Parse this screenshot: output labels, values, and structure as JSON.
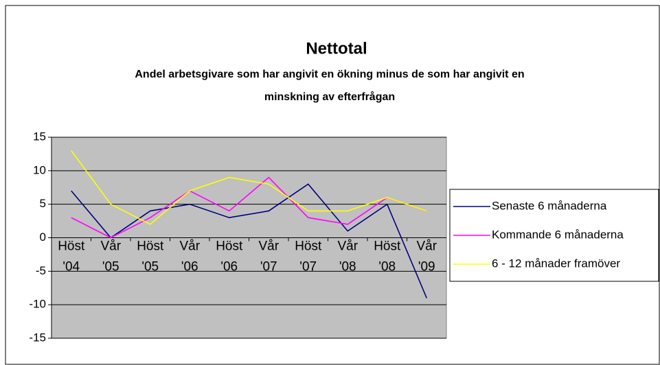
{
  "chart_data": {
    "type": "line",
    "title": "Nettotal",
    "subtitle": [
      "Andel arbetsgivare som har angivit en ökning minus de som har angivit en",
      "minskning av efterfrågan"
    ],
    "categories": [
      [
        "Höst",
        "'04"
      ],
      [
        "Vår",
        "'05"
      ],
      [
        "Höst",
        "'05"
      ],
      [
        "Vår",
        "'06"
      ],
      [
        "Höst",
        "'06"
      ],
      [
        "Vår",
        "'07"
      ],
      [
        "Höst",
        "'07"
      ],
      [
        "Vår",
        "'08"
      ],
      [
        "Höst",
        "'08"
      ],
      [
        "Vår",
        "'09"
      ]
    ],
    "series": [
      {
        "name": "Senaste 6 månaderna",
        "color": "#000080",
        "values": [
          7,
          0,
          4,
          5,
          3,
          4,
          8,
          1,
          5,
          -9
        ]
      },
      {
        "name": "Kommande 6 månaderna",
        "color": "#ff00ff",
        "values": [
          3,
          0,
          3,
          7,
          4,
          9,
          3,
          2,
          6,
          4
        ]
      },
      {
        "name": "6 - 12 månader framöver",
        "color": "#ffff00",
        "values": [
          13,
          5,
          2,
          7,
          9,
          8,
          4,
          4,
          6,
          4
        ]
      }
    ],
    "ylim": [
      -15,
      15
    ],
    "yticks": [
      -15,
      -10,
      -5,
      0,
      5,
      10,
      15
    ],
    "grid": true,
    "legend": "right",
    "plot_background": "#c0c0c0"
  }
}
